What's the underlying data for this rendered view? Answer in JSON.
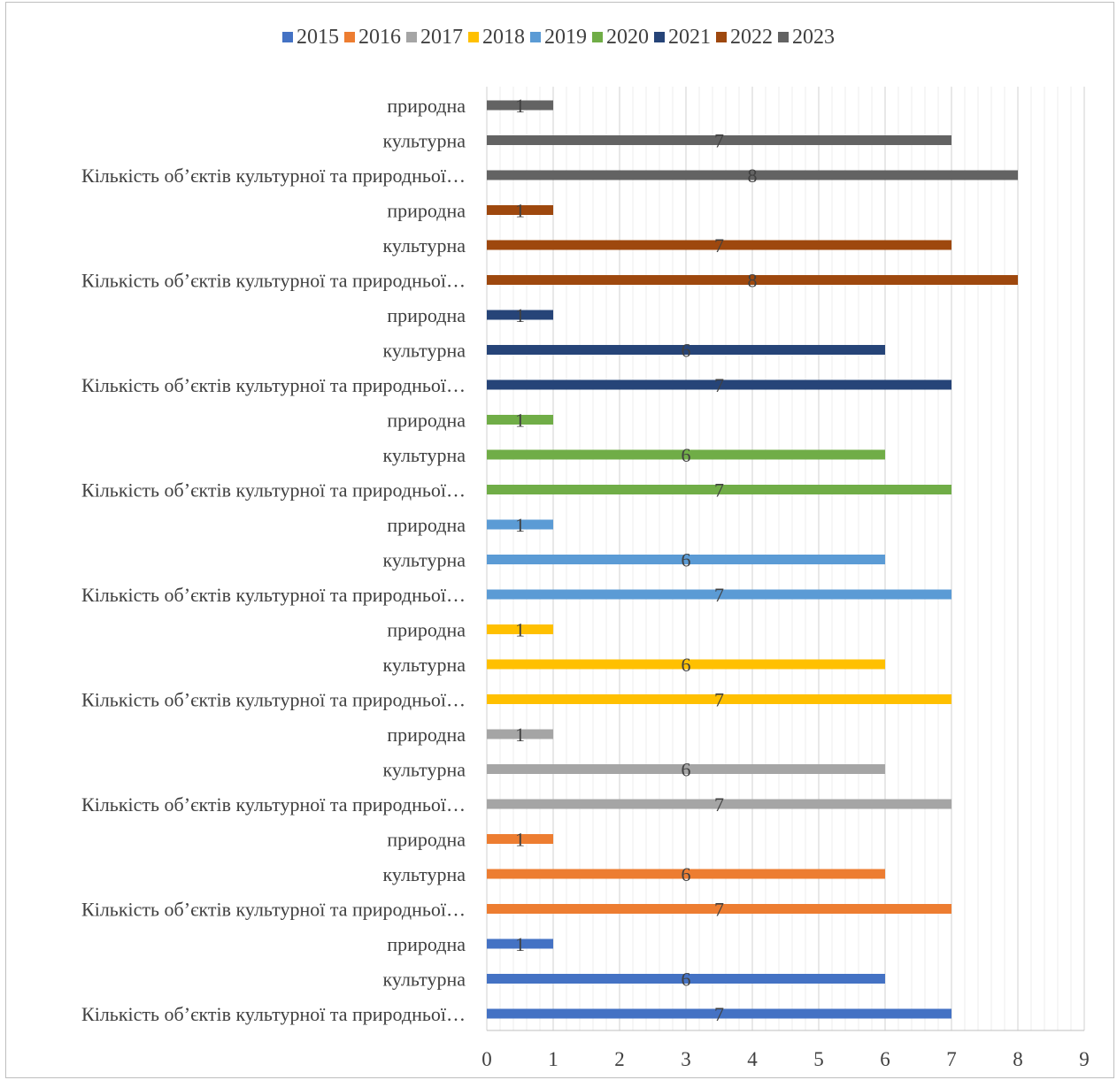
{
  "chart_data": {
    "type": "bar",
    "orientation": "horizontal",
    "xlim": [
      0,
      9
    ],
    "x_ticks": [
      "0",
      "1",
      "2",
      "3",
      "4",
      "5",
      "6",
      "7",
      "8",
      "9"
    ],
    "grid": "vertical",
    "legend_position": "top",
    "series": [
      {
        "name": "2015",
        "color": "#4472c4",
        "categories": [
          "Кількість об’єктів культурної та природньої…",
          "культурна",
          "природна"
        ],
        "values": [
          7,
          6,
          1
        ]
      },
      {
        "name": "2016",
        "color": "#ed7d31",
        "categories": [
          "Кількість об’єктів культурної та природньої…",
          "культурна",
          "природна"
        ],
        "values": [
          7,
          6,
          1
        ]
      },
      {
        "name": "2017",
        "color": "#a5a5a5",
        "categories": [
          "Кількість об’єктів культурної та природньої…",
          "культурна",
          "природна"
        ],
        "values": [
          7,
          6,
          1
        ]
      },
      {
        "name": "2018",
        "color": "#ffc000",
        "categories": [
          "Кількість об’єктів культурної та природньої…",
          "культурна",
          "природна"
        ],
        "values": [
          7,
          6,
          1
        ]
      },
      {
        "name": "2019",
        "color": "#5b9bd5",
        "categories": [
          "Кількість об’єктів культурної та природньої…",
          "культурна",
          "природна"
        ],
        "values": [
          7,
          6,
          1
        ]
      },
      {
        "name": "2020",
        "color": "#70ad47",
        "categories": [
          "Кількість об’єктів культурної та природньої…",
          "культурна",
          "природна"
        ],
        "values": [
          7,
          6,
          1
        ]
      },
      {
        "name": "2021",
        "color": "#264478",
        "categories": [
          "Кількість об’єктів культурної та природньої…",
          "культурна",
          "природна"
        ],
        "values": [
          7,
          6,
          1
        ]
      },
      {
        "name": "2022",
        "color": "#9e480e",
        "categories": [
          "Кількість об’єктів культурної та природньої…",
          "культурна",
          "природна"
        ],
        "values": [
          8,
          7,
          1
        ]
      },
      {
        "name": "2023",
        "color": "#636363",
        "categories": [
          "Кількість об’єктів культурної та природньої…",
          "культурна",
          "природна"
        ],
        "values": [
          8,
          7,
          1
        ]
      }
    ]
  }
}
